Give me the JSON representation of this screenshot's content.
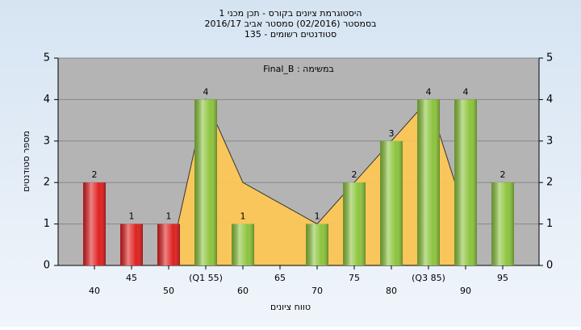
{
  "chart_data": {
    "type": "bar",
    "title": "היסטוגרמת ציונים בקורס - תכן מכני 1",
    "subtitle_lines": [
      "בסמסטר  (02/2016)  סמסטר אביב 2016/17",
      "סטודנטים רשומים - 135"
    ],
    "annotation": "במשימה : Final_B",
    "y_label": "מספר סטודנטים",
    "x_label": "טווח ציונים",
    "categories": [
      "40",
      "45",
      "50",
      "(Q1 55)",
      "60",
      "65",
      "70",
      "75",
      "80",
      "(Q3 85)",
      "90",
      "95"
    ],
    "values": [
      2,
      1,
      1,
      4,
      1,
      0,
      1,
      2,
      3,
      4,
      4,
      2
    ],
    "colors": [
      "#e02020",
      "#e02020",
      "#e02020",
      "#8cc43c",
      "#8cc43c",
      "#8cc43c",
      "#8cc43c",
      "#8cc43c",
      "#8cc43c",
      "#8cc43c",
      "#8cc43c",
      "#8cc43c"
    ],
    "area": {
      "color": "#ffc850",
      "values": [
        null,
        null,
        0,
        4,
        2,
        1.5,
        1,
        2,
        3,
        4,
        1.2,
        null
      ]
    },
    "ylim": [
      0,
      5
    ],
    "yticks": [
      0,
      1,
      2,
      3,
      4,
      5
    ],
    "y2lim": [
      0,
      5
    ],
    "y2ticks": [
      0,
      1,
      2,
      3,
      4,
      5
    ],
    "grid": true
  }
}
